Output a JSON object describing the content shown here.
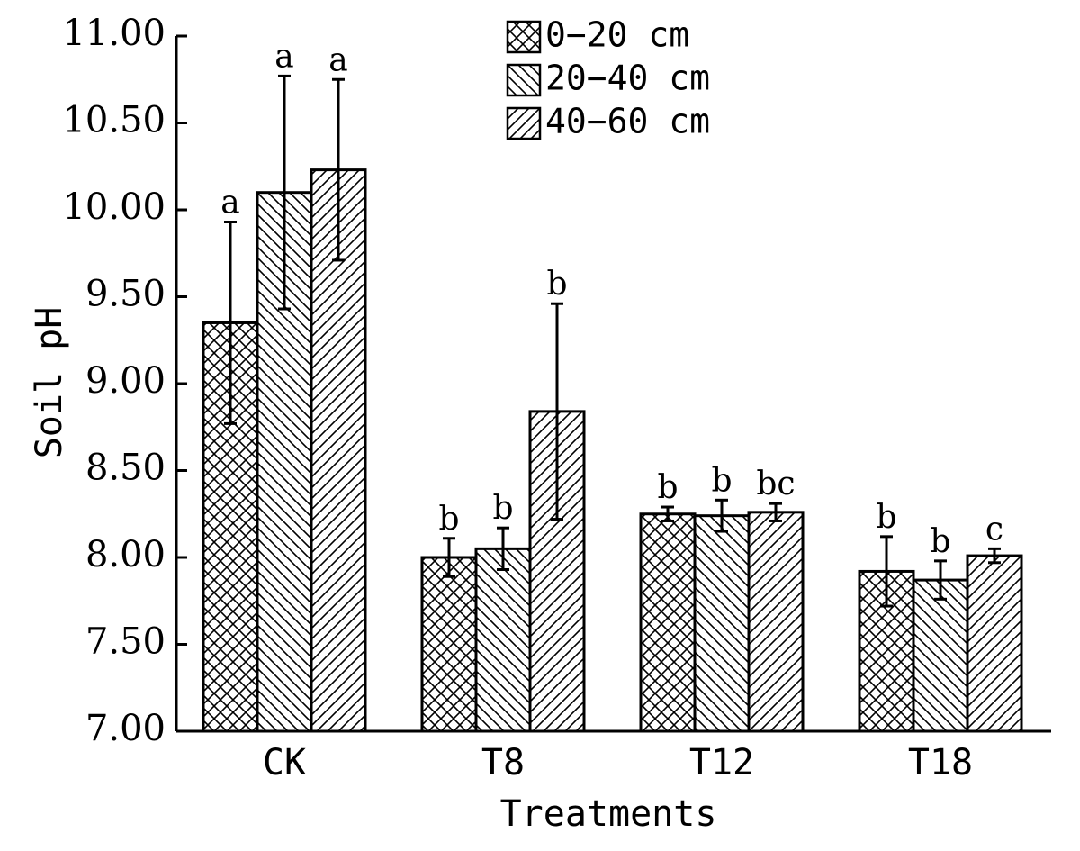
{
  "chart_data": {
    "type": "bar",
    "title": "",
    "xlabel": "Treatments",
    "ylabel": "Soil pH",
    "ylim": [
      7.0,
      11.0
    ],
    "yticks": [
      "7.00",
      "7.50",
      "8.00",
      "8.50",
      "9.00",
      "9.50",
      "10.00",
      "10.50",
      "11.00"
    ],
    "categories": [
      "CK",
      "T8",
      "T12",
      "T18"
    ],
    "legend_position": "top-center",
    "grid": false,
    "series": [
      {
        "name": "0−20 cm",
        "pattern": "crosshatch",
        "values": [
          9.35,
          8.0,
          8.25,
          7.92
        ],
        "errors": [
          0.58,
          0.11,
          0.04,
          0.2
        ],
        "labels": [
          "a",
          "b",
          "b",
          "b"
        ]
      },
      {
        "name": "20−40 cm",
        "pattern": "back-diagonal",
        "values": [
          10.1,
          8.05,
          8.24,
          7.87
        ],
        "errors": [
          0.67,
          0.12,
          0.09,
          0.11
        ],
        "labels": [
          "a",
          "b",
          "b",
          "b"
        ]
      },
      {
        "name": "40−60 cm",
        "pattern": "forward-diagonal",
        "values": [
          10.23,
          8.84,
          8.26,
          8.01
        ],
        "errors": [
          0.52,
          0.62,
          0.05,
          0.04
        ],
        "labels": [
          "a",
          "b",
          "bc",
          "c"
        ]
      }
    ]
  }
}
